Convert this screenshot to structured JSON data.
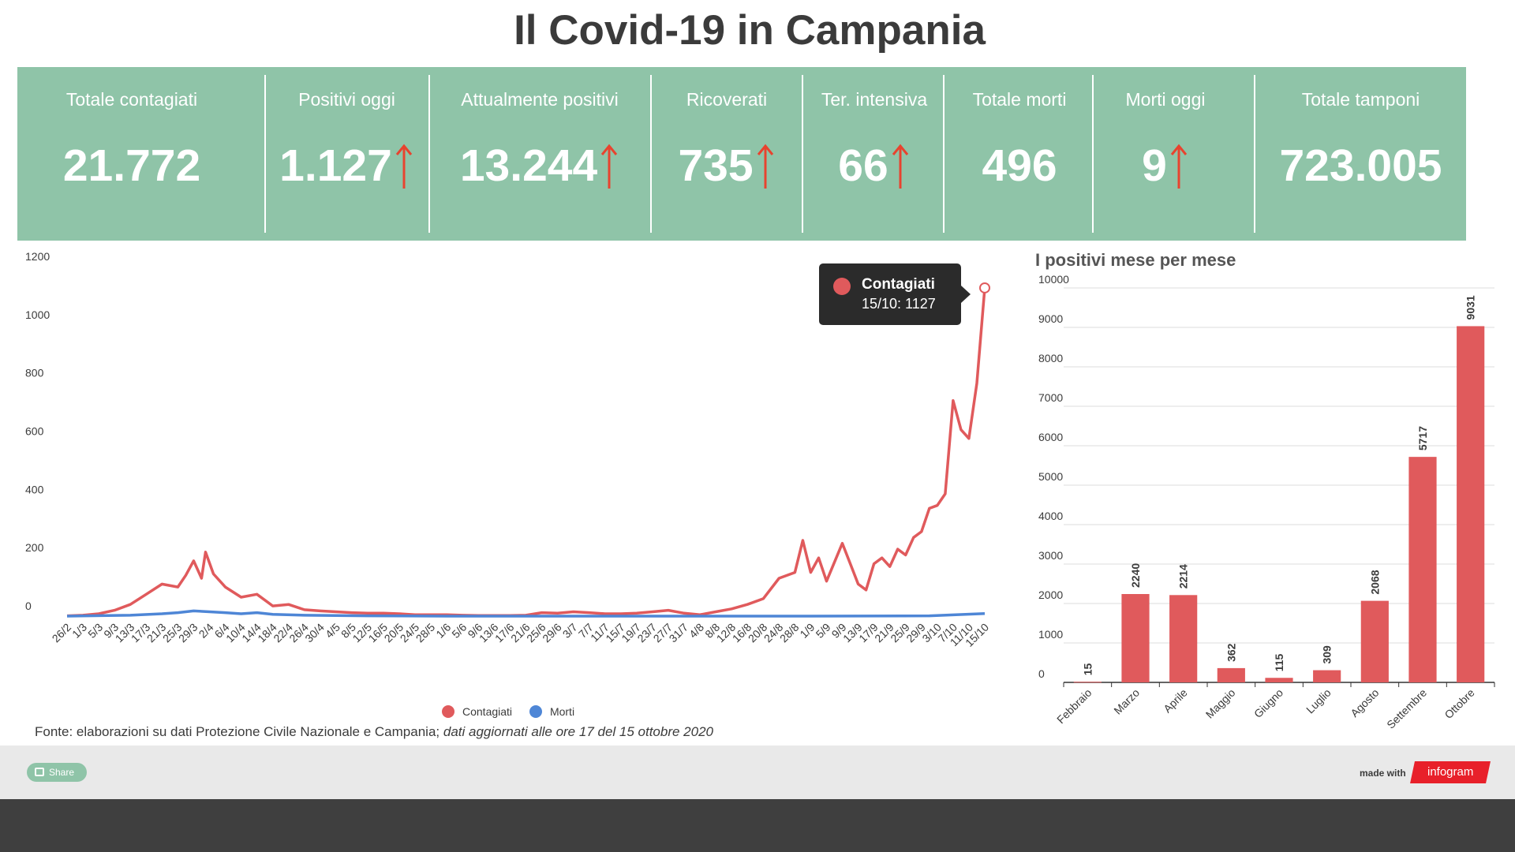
{
  "page": {
    "title": "Il Covid-19 in Campania"
  },
  "stats": [
    {
      "label": "Totale contagiati",
      "value": "21.772",
      "arrow": false
    },
    {
      "label": "Positivi oggi",
      "value": "1.127",
      "arrow": true
    },
    {
      "label": "Attualmente positivi",
      "value": "13.244",
      "arrow": true
    },
    {
      "label": "Ricoverati",
      "value": "735",
      "arrow": true
    },
    {
      "label": "Ter. intensiva",
      "value": "66",
      "arrow": true
    },
    {
      "label": "Totale morti",
      "value": "496",
      "arrow": false
    },
    {
      "label": "Morti oggi",
      "value": "9",
      "arrow": true
    },
    {
      "label": "Totale tamponi",
      "value": "723.005",
      "arrow": false
    }
  ],
  "colors": {
    "header_bg": "#8fc4a8",
    "contagiati": "#e05a5c",
    "morti": "#4e86d6",
    "arrow": "#e8432f",
    "bar": "#e05a5c"
  },
  "tooltip": {
    "series": "Contagiati",
    "text": "15/10: 1127"
  },
  "source": {
    "text": "Fonte: elaborazioni su dati Protezione Civile Nazionale e Campania;",
    "updated": "dati aggiornati alle ore 17 del 15 ottobre 2020"
  },
  "footer": {
    "share_label": "Share",
    "made_with": "made with",
    "brand": "infogram"
  },
  "chart_data": [
    {
      "type": "line",
      "title": "",
      "xlabel": "",
      "ylabel": "",
      "ylim": [
        0,
        1200
      ],
      "y_ticks": [
        0,
        200,
        400,
        600,
        800,
        1000,
        1200
      ],
      "x_ticks": [
        "26/2",
        "1/3",
        "5/3",
        "9/3",
        "13/3",
        "17/3",
        "21/3",
        "25/3",
        "29/3",
        "2/4",
        "6/4",
        "10/4",
        "14/4",
        "18/4",
        "22/4",
        "26/4",
        "30/4",
        "4/5",
        "8/5",
        "12/5",
        "16/5",
        "20/5",
        "24/5",
        "28/5",
        "1/6",
        "5/6",
        "9/6",
        "13/6",
        "17/6",
        "21/6",
        "25/6",
        "29/6",
        "3/7",
        "7/7",
        "11/7",
        "15/7",
        "19/7",
        "23/7",
        "27/7",
        "31/7",
        "4/8",
        "8/8",
        "12/8",
        "16/8",
        "20/8",
        "24/8",
        "28/8",
        "1/9",
        "5/9",
        "9/9",
        "13/9",
        "17/9",
        "21/9",
        "25/9",
        "29/9",
        "3/10",
        "7/10",
        "11/10",
        "15/10"
      ],
      "legend": "bottom",
      "grid": false,
      "series": [
        {
          "name": "Contagiati",
          "key_points": [
            [
              "26/2",
              1
            ],
            [
              "1/3",
              3
            ],
            [
              "5/3",
              8
            ],
            [
              "9/3",
              20
            ],
            [
              "13/3",
              40
            ],
            [
              "17/3",
              75
            ],
            [
              "21/3",
              110
            ],
            [
              "25/3",
              100
            ],
            [
              "27/3",
              140
            ],
            [
              "29/3",
              190
            ],
            [
              "31/3",
              130
            ],
            [
              "1/4",
              220
            ],
            [
              "3/4",
              145
            ],
            [
              "6/4",
              100
            ],
            [
              "10/4",
              65
            ],
            [
              "14/4",
              75
            ],
            [
              "18/4",
              35
            ],
            [
              "22/4",
              40
            ],
            [
              "26/4",
              22
            ],
            [
              "30/4",
              18
            ],
            [
              "4/5",
              15
            ],
            [
              "8/5",
              12
            ],
            [
              "12/5",
              10
            ],
            [
              "16/5",
              10
            ],
            [
              "20/5",
              8
            ],
            [
              "24/5",
              5
            ],
            [
              "28/5",
              5
            ],
            [
              "1/6",
              5
            ],
            [
              "5/6",
              3
            ],
            [
              "9/6",
              2
            ],
            [
              "13/6",
              2
            ],
            [
              "17/6",
              2
            ],
            [
              "21/6",
              3
            ],
            [
              "25/6",
              12
            ],
            [
              "29/6",
              10
            ],
            [
              "3/7",
              15
            ],
            [
              "7/7",
              12
            ],
            [
              "11/7",
              8
            ],
            [
              "15/7",
              8
            ],
            [
              "19/7",
              10
            ],
            [
              "23/7",
              15
            ],
            [
              "27/7",
              20
            ],
            [
              "31/7",
              10
            ],
            [
              "4/8",
              5
            ],
            [
              "8/8",
              15
            ],
            [
              "12/8",
              25
            ],
            [
              "16/8",
              40
            ],
            [
              "20/8",
              60
            ],
            [
              "24/8",
              130
            ],
            [
              "28/8",
              150
            ],
            [
              "30/8",
              260
            ],
            [
              "1/9",
              150
            ],
            [
              "3/9",
              200
            ],
            [
              "5/9",
              120
            ],
            [
              "9/9",
              250
            ],
            [
              "11/9",
              180
            ],
            [
              "13/9",
              110
            ],
            [
              "15/9",
              90
            ],
            [
              "17/9",
              180
            ],
            [
              "19/9",
              200
            ],
            [
              "21/9",
              170
            ],
            [
              "23/9",
              230
            ],
            [
              "25/9",
              210
            ],
            [
              "27/9",
              270
            ],
            [
              "29/9",
              290
            ],
            [
              "1/10",
              370
            ],
            [
              "3/10",
              380
            ],
            [
              "5/10",
              420
            ],
            [
              "7/10",
              740
            ],
            [
              "9/10",
              640
            ],
            [
              "11/10",
              610
            ],
            [
              "13/10",
              800
            ],
            [
              "15/10",
              1127
            ]
          ]
        },
        {
          "name": "Morti",
          "key_points": [
            [
              "26/2",
              0
            ],
            [
              "13/3",
              3
            ],
            [
              "21/3",
              8
            ],
            [
              "25/3",
              12
            ],
            [
              "29/3",
              18
            ],
            [
              "2/4",
              15
            ],
            [
              "6/4",
              12
            ],
            [
              "10/4",
              8
            ],
            [
              "14/4",
              12
            ],
            [
              "18/4",
              6
            ],
            [
              "26/4",
              3
            ],
            [
              "4/5",
              2
            ],
            [
              "12/5",
              1
            ],
            [
              "1/6",
              0
            ],
            [
              "15/7",
              0
            ],
            [
              "1/9",
              0
            ],
            [
              "1/10",
              1
            ],
            [
              "15/10",
              9
            ]
          ]
        }
      ],
      "highlight": {
        "x": "15/10",
        "y": 1127
      }
    },
    {
      "type": "bar",
      "title": "I positivi mese per mese",
      "xlabel": "",
      "ylabel": "",
      "ylim": [
        0,
        10000
      ],
      "y_ticks": [
        0,
        1000,
        2000,
        3000,
        4000,
        5000,
        6000,
        7000,
        8000,
        9000,
        10000
      ],
      "grid": true,
      "categories": [
        "Febbraio",
        "Marzo",
        "Aprile",
        "Maggio",
        "Giugno",
        "Luglio",
        "Agosto",
        "Settembre",
        "Ottobre"
      ],
      "values": [
        15,
        2240,
        2214,
        362,
        115,
        309,
        2068,
        5717,
        9031
      ]
    }
  ]
}
